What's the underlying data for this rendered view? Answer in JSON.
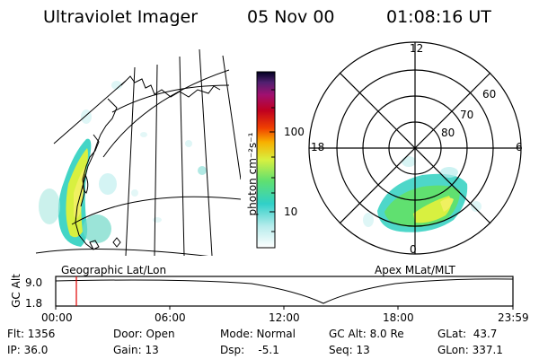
{
  "header": {
    "instrument": "Ultraviolet Imager",
    "date": "05 Nov 00",
    "time": "01:08:16 UT"
  },
  "colorbar": {
    "unit_label": "photon cm⁻²s⁻¹",
    "tick_100": "100",
    "tick_10": "10"
  },
  "map_left": {
    "caption": "Geographic Lat/Lon"
  },
  "map_right": {
    "caption": "Apex MLat/MLT",
    "mlt_12": "12",
    "mlt_18": "18",
    "mlt_6": "6",
    "mlt_0": "0",
    "lat_60": "60",
    "lat_70": "70",
    "lat_80": "80"
  },
  "timeline": {
    "axis_title": "GC Alt",
    "y_top": "9.0",
    "y_bottom": "1.8",
    "x_labels": [
      "00:00",
      "06:00",
      "12:00",
      "18:00",
      "23:59"
    ]
  },
  "status": {
    "flt": "Flt: 1356",
    "ip": "IP: 36.0",
    "door": "Door: Open",
    "gain": "Gain: 13",
    "mode": "Mode: Normal",
    "dsp": "Dsp:    -5.1",
    "gc_alt": "GC Alt: 8.0 Re",
    "seq": "Seq: 13",
    "glat": "GLat:  43.7",
    "glon": "GLon: 337.1"
  }
}
